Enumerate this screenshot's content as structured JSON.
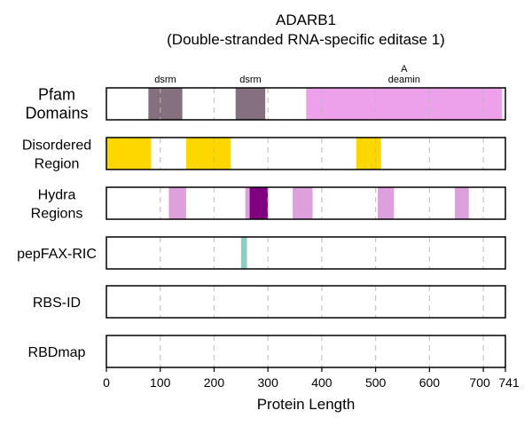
{
  "chart_data": {
    "type": "bar",
    "title": [
      "ADARB1",
      "(Double-stranded RNA-specific editase 1)"
    ],
    "xlabel": "Protein Length",
    "xlim": [
      0,
      741
    ],
    "xticks": [
      0,
      100,
      200,
      300,
      400,
      500,
      600,
      700,
      741
    ],
    "xtick_labels": [
      "0",
      "100",
      "200",
      "300",
      "400",
      "500",
      "600",
      "700",
      "741"
    ],
    "grid_x": [
      100,
      200,
      300,
      400,
      500,
      600,
      700
    ],
    "grid": "vertical dashed",
    "tracks": [
      {
        "label": [
          "Pfam",
          "Domains"
        ],
        "segments": [
          {
            "start": 78,
            "end": 141,
            "color": "#857080",
            "label": [
              "dsrm"
            ]
          },
          {
            "start": 240,
            "end": 295,
            "color": "#857080",
            "label": [
              "dsrm"
            ]
          },
          {
            "start": 371,
            "end": 735,
            "color": "#eda1ea",
            "label": [
              "A",
              "deamin"
            ]
          }
        ]
      },
      {
        "label": [
          "Disordered",
          "Region"
        ],
        "segments": [
          {
            "start": 0,
            "end": 83,
            "color": "#ffd700"
          },
          {
            "start": 148,
            "end": 231,
            "color": "#ffd700"
          },
          {
            "start": 464,
            "end": 510,
            "color": "#ffd700"
          }
        ]
      },
      {
        "label": [
          "Hydra",
          "Regions"
        ],
        "segments": [
          {
            "start": 116,
            "end": 148,
            "color": "#dda0dd"
          },
          {
            "start": 258,
            "end": 266,
            "color": "#dda0dd"
          },
          {
            "start": 266,
            "end": 300,
            "color": "#800080"
          },
          {
            "start": 346,
            "end": 383,
            "color": "#dda0dd"
          },
          {
            "start": 504,
            "end": 534,
            "color": "#dda0dd"
          },
          {
            "start": 647,
            "end": 673,
            "color": "#dda0dd"
          }
        ]
      },
      {
        "label": [
          "pepFAX-RIC"
        ],
        "segments": [
          {
            "start": 250,
            "end": 261,
            "color": "#8ecdc5"
          }
        ]
      },
      {
        "label": [
          "RBS-ID"
        ],
        "segments": []
      },
      {
        "label": [
          "RBDmap"
        ],
        "segments": []
      }
    ]
  }
}
